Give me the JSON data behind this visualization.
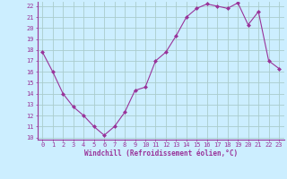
{
  "x": [
    0,
    1,
    2,
    3,
    4,
    5,
    6,
    7,
    8,
    9,
    10,
    11,
    12,
    13,
    14,
    15,
    16,
    17,
    18,
    19,
    20,
    21,
    22,
    23
  ],
  "y": [
    17.8,
    16.0,
    14.0,
    12.8,
    12.0,
    11.0,
    10.2,
    11.0,
    12.3,
    14.3,
    14.6,
    17.0,
    17.8,
    19.3,
    21.0,
    21.8,
    22.2,
    22.0,
    21.8,
    22.3,
    20.3,
    21.5,
    17.0,
    16.3
  ],
  "line_color": "#993399",
  "marker": "D",
  "marker_size": 2.0,
  "bg_color": "#cceeff",
  "grid_color": "#aacccc",
  "xlabel": "Windchill (Refroidissement éolien,°C)",
  "xlabel_color": "#993399",
  "tick_color": "#993399",
  "spine_color": "#993399",
  "ylim": [
    10,
    22
  ],
  "xlim": [
    0,
    23
  ],
  "yticks": [
    10,
    11,
    12,
    13,
    14,
    15,
    16,
    17,
    18,
    19,
    20,
    21,
    22
  ],
  "xticks": [
    0,
    1,
    2,
    3,
    4,
    5,
    6,
    7,
    8,
    9,
    10,
    11,
    12,
    13,
    14,
    15,
    16,
    17,
    18,
    19,
    20,
    21,
    22,
    23
  ],
  "tick_fontsize": 5.0,
  "xlabel_fontsize": 5.5
}
